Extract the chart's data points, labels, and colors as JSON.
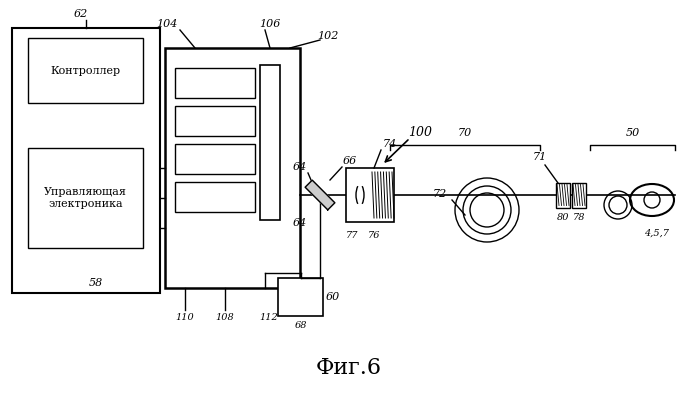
{
  "bg_color": "#ffffff",
  "line_color": "#000000",
  "fig_label": "Фиг.6",
  "label_62": "62",
  "label_100": "100",
  "label_controller": "Контроллер",
  "label_electronics": "Управляющая\nэлектроника",
  "label_58": "58",
  "label_102": "102",
  "label_104": "104",
  "label_106": "106",
  "label_108": "108",
  "label_110": "110",
  "label_112": "112",
  "label_60": "60",
  "label_64a": "64",
  "label_64b": "64",
  "label_66": "66",
  "label_68": "68",
  "label_74": "74",
  "label_76": "76",
  "label_77": "77",
  "label_70": "70",
  "label_71": "71",
  "label_72": "72",
  "label_50": "50",
  "label_78": "78",
  "label_80": "80",
  "label_457": "4,5,7"
}
